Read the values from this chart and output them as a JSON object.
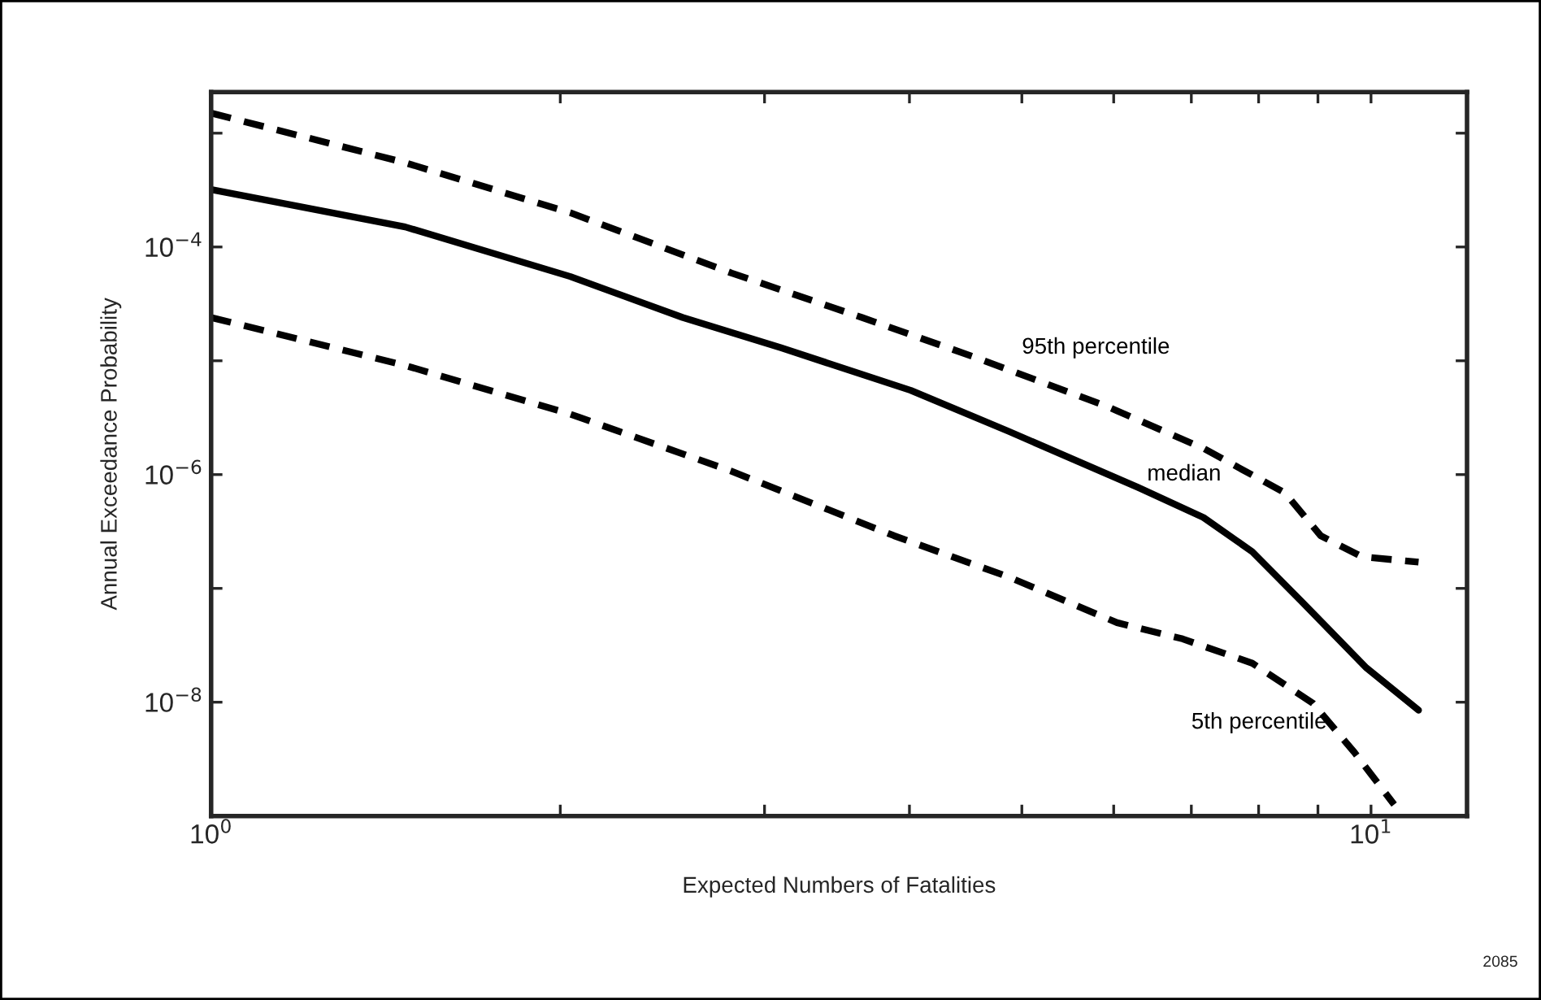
{
  "chart_data": {
    "type": "line",
    "xlabel": "Expected Numbers of Fatalities",
    "ylabel": "Annual Exceedance Probability",
    "log": "xy",
    "grid": false,
    "legend": false,
    "marker": "none",
    "xlim": [
      1,
      12.1
    ],
    "ylim": [
      1e-09,
      0.0023
    ],
    "xticks": [
      {
        "value": 1,
        "label": "10$^{0}$"
      },
      {
        "value": 2,
        "label": null
      },
      {
        "value": 3,
        "label": null
      },
      {
        "value": 4,
        "label": null
      },
      {
        "value": 5,
        "label": null
      },
      {
        "value": 6,
        "label": null
      },
      {
        "value": 7,
        "label": null
      },
      {
        "value": 8,
        "label": null
      },
      {
        "value": 9,
        "label": null
      },
      {
        "value": 10,
        "label": "10$^{1}$"
      }
    ],
    "yticks": [
      {
        "value": 1e-09,
        "label": null
      },
      {
        "value": 1e-08,
        "label": "10$^{−8}$"
      },
      {
        "value": 1e-07,
        "label": null
      },
      {
        "value": 1e-06,
        "label": "10$^{−6}$"
      },
      {
        "value": 1e-05,
        "label": null
      },
      {
        "value": 0.0001,
        "label": "10$^{−4}$"
      },
      {
        "value": 0.001,
        "label": null
      }
    ],
    "series": [
      {
        "name": "95th percentile",
        "color": "#000000",
        "line_style": "dashed",
        "x": [
          1,
          1.47,
          2.04,
          2.81,
          3.64,
          4.56,
          5.91,
          7.17,
          8.43,
          9.05,
          9.82,
          10.99
        ],
        "values": [
          0.0015,
          0.00055,
          0.0002,
          5.9e-05,
          2.4e-05,
          1.07e-05,
          4e-06,
          1.7e-06,
          6.9e-07,
          2.9e-07,
          1.9e-07,
          1.7e-07
        ]
      },
      {
        "name": "median",
        "color": "#000000",
        "line_style": "solid",
        "x": [
          1,
          1.47,
          2.04,
          2.55,
          3.1,
          4.01,
          4.87,
          6.3,
          7.17,
          7.9,
          8.71,
          9.91,
          10.99
        ],
        "values": [
          0.00032,
          0.00015,
          5.5e-05,
          2.4e-05,
          1.3e-05,
          5.5e-06,
          2.4e-06,
          7.7e-07,
          4.2e-07,
          2.1e-07,
          7.7e-08,
          2e-08,
          8.5e-09
        ]
      },
      {
        "name": "5th percentile",
        "color": "#000000",
        "line_style": "dashed",
        "x": [
          1,
          1.47,
          2.04,
          2.81,
          3.88,
          4.87,
          6.04,
          6.88,
          7.9,
          8.91,
          9.68,
          10.47
        ],
        "values": [
          2.4e-05,
          9.1e-06,
          3.4e-06,
          1.07e-06,
          2.9e-07,
          1.26e-07,
          5e-08,
          3.6e-08,
          2.2e-08,
          9.8e-09,
          3.6e-09,
          1.26e-09
        ]
      }
    ],
    "annotations": [
      "2085"
    ]
  }
}
